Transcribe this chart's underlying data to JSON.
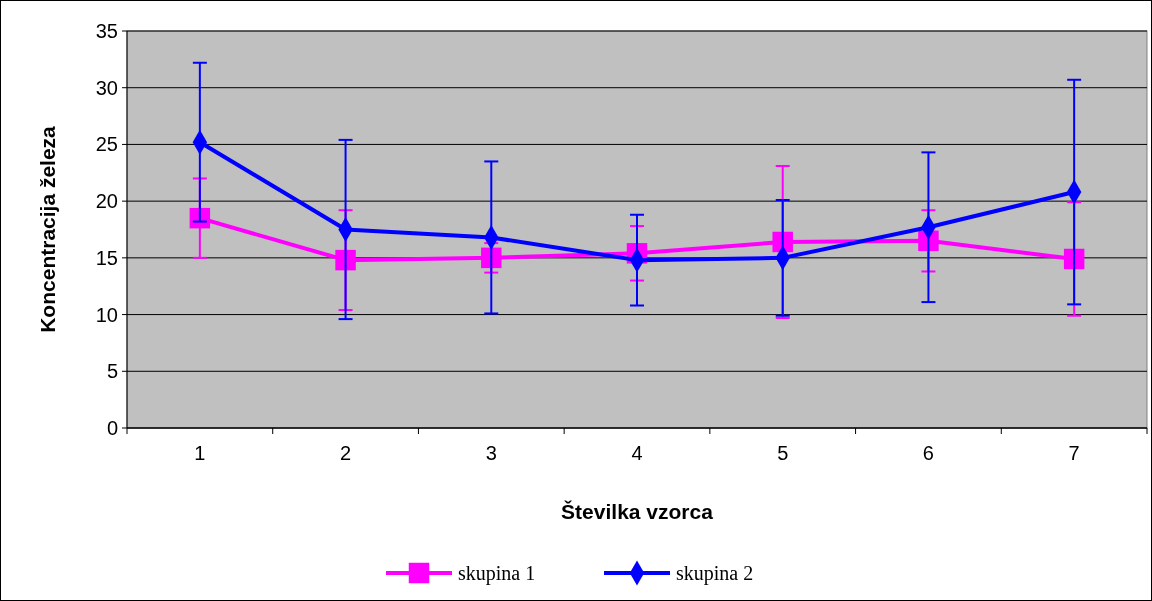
{
  "chart_data": {
    "type": "line",
    "xlabel": "Številka vzorca",
    "ylabel": "Koncentracija železa",
    "categories": [
      "1",
      "2",
      "3",
      "4",
      "5",
      "6",
      "7"
    ],
    "ylim": [
      0,
      35
    ],
    "yticks": [
      0,
      5,
      10,
      15,
      20,
      25,
      30,
      35
    ],
    "grid": "y",
    "legend": "bottom",
    "series": [
      {
        "name": "skupina 1",
        "color": "#ff00ff",
        "marker": "square",
        "values": [
          18.5,
          14.8,
          15.0,
          15.4,
          16.4,
          16.5,
          14.9
        ],
        "errors": [
          3.5,
          4.4,
          1.3,
          2.4,
          6.7,
          2.7,
          5.0
        ]
      },
      {
        "name": "skupina 2",
        "color": "#0000ff",
        "marker": "diamond",
        "values": [
          25.2,
          17.5,
          16.8,
          14.8,
          15.0,
          17.7,
          20.8
        ],
        "errors": [
          7.0,
          7.9,
          6.7,
          4.0,
          5.1,
          6.6,
          9.9
        ]
      }
    ]
  }
}
